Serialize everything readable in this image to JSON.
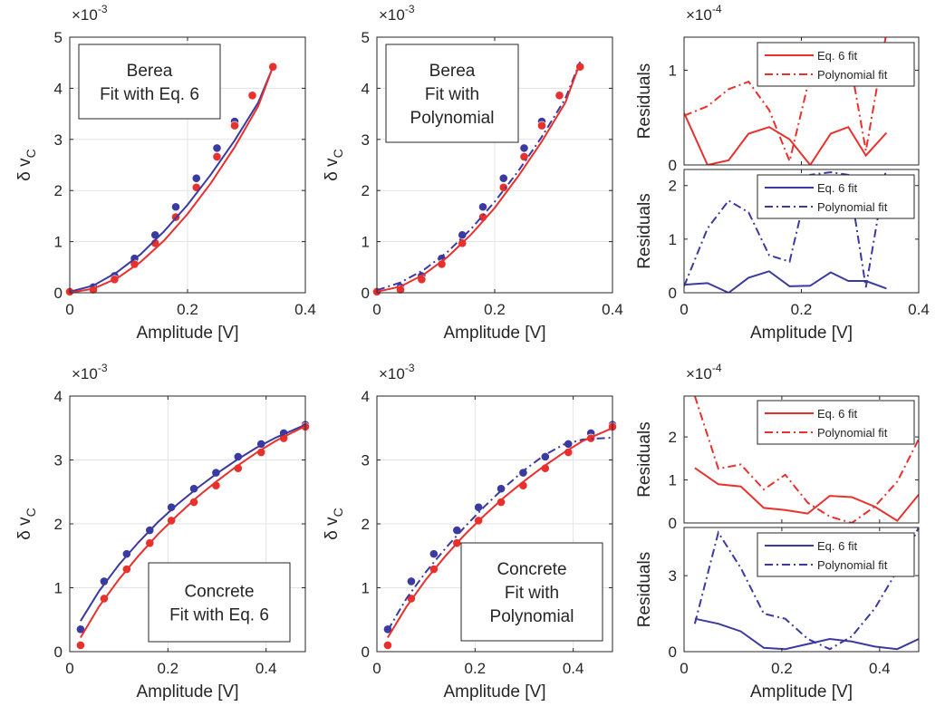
{
  "colors": {
    "red": "#e8312d",
    "blue": "#3a3aa0",
    "grid": "#e3e3e3",
    "axis": "#262626"
  },
  "chart_data": [
    {
      "id": "berea_eq6",
      "type": "scatter",
      "xlabel": "Amplitude [V]",
      "ylabel": "δ v",
      "ylabel_sub": "C",
      "exponent": "×10",
      "exponent_power": "-3",
      "xlim": [
        0,
        0.4
      ],
      "ylim": [
        0,
        5
      ],
      "xticks": [
        0,
        0.2,
        0.4
      ],
      "xtick_labels": [
        "0",
        "0.2",
        "0.4"
      ],
      "yticks": [
        0,
        1,
        2,
        3,
        4,
        5
      ],
      "ytick_labels": [
        "0",
        "1",
        "2",
        "3",
        "4",
        "5"
      ],
      "annotation": [
        "Berea",
        "Fit with Eq. 6"
      ],
      "series": [
        {
          "color": "blue",
          "marker": true,
          "x": [
            0,
            0.04,
            0.076,
            0.11,
            0.145,
            0.18,
            0.215,
            0.25,
            0.28,
            0.31,
            0.345
          ],
          "y": [
            0.03,
            0.11,
            0.33,
            0.67,
            1.13,
            1.68,
            2.24,
            2.83,
            3.35,
            3.86,
            4.42
          ]
        },
        {
          "color": "red",
          "marker": true,
          "x": [
            0,
            0.04,
            0.076,
            0.11,
            0.145,
            0.18,
            0.215,
            0.25,
            0.28,
            0.31,
            0.345
          ],
          "y": [
            0.02,
            0.06,
            0.26,
            0.56,
            0.97,
            1.48,
            2.06,
            2.66,
            3.27,
            3.86,
            4.42
          ]
        },
        {
          "color": "blue",
          "line": "solid",
          "x": [
            0,
            0.04,
            0.08,
            0.12,
            0.16,
            0.2,
            0.24,
            0.28,
            0.32,
            0.345
          ],
          "y": [
            0.02,
            0.14,
            0.4,
            0.75,
            1.2,
            1.72,
            2.32,
            2.98,
            3.72,
            4.42
          ]
        },
        {
          "color": "red",
          "line": "solid",
          "x": [
            0,
            0.04,
            0.08,
            0.12,
            0.16,
            0.2,
            0.24,
            0.28,
            0.32,
            0.345
          ],
          "y": [
            0.0,
            0.08,
            0.28,
            0.6,
            1.02,
            1.54,
            2.15,
            2.85,
            3.65,
            4.42
          ]
        }
      ]
    },
    {
      "id": "berea_poly",
      "type": "scatter",
      "xlabel": "Amplitude [V]",
      "ylabel": "δ v",
      "ylabel_sub": "C",
      "exponent": "×10",
      "exponent_power": "-3",
      "xlim": [
        0,
        0.4
      ],
      "ylim": [
        0,
        5
      ],
      "xticks": [
        0,
        0.2,
        0.4
      ],
      "xtick_labels": [
        "0",
        "0.2",
        "0.4"
      ],
      "yticks": [
        0,
        1,
        2,
        3,
        4,
        5
      ],
      "ytick_labels": [
        "0",
        "1",
        "2",
        "3",
        "4",
        "5"
      ],
      "annotation": [
        "Berea",
        "Fit with",
        "Polynomial"
      ],
      "series": [
        {
          "color": "blue",
          "marker": true,
          "x": [
            0,
            0.04,
            0.076,
            0.11,
            0.145,
            0.18,
            0.215,
            0.25,
            0.28,
            0.31,
            0.345
          ],
          "y": [
            0.03,
            0.11,
            0.33,
            0.67,
            1.13,
            1.68,
            2.24,
            2.83,
            3.35,
            3.86,
            4.42
          ]
        },
        {
          "color": "red",
          "marker": true,
          "x": [
            0,
            0.04,
            0.076,
            0.11,
            0.145,
            0.18,
            0.215,
            0.25,
            0.28,
            0.31,
            0.345
          ],
          "y": [
            0.02,
            0.06,
            0.26,
            0.56,
            0.97,
            1.48,
            2.06,
            2.66,
            3.27,
            3.86,
            4.42
          ]
        },
        {
          "color": "blue",
          "line": "dashdot",
          "x": [
            0,
            0.04,
            0.08,
            0.12,
            0.16,
            0.2,
            0.24,
            0.28,
            0.32,
            0.345
          ],
          "y": [
            0.05,
            0.2,
            0.45,
            0.8,
            1.25,
            1.78,
            2.38,
            3.05,
            3.8,
            4.52
          ]
        },
        {
          "color": "red",
          "line": "solid",
          "x": [
            0,
            0.04,
            0.08,
            0.12,
            0.16,
            0.2,
            0.24,
            0.28,
            0.32,
            0.345
          ],
          "y": [
            0.02,
            0.12,
            0.36,
            0.7,
            1.14,
            1.66,
            2.28,
            2.96,
            3.72,
            4.5
          ]
        }
      ]
    },
    {
      "id": "berea_resid",
      "type": "line",
      "exponent": "×10",
      "exponent_power": "-4",
      "xlabel": "Amplitude [V]",
      "xlim": [
        0,
        0.4
      ],
      "xticks": [
        0,
        0.2,
        0.4
      ],
      "xtick_labels": [
        "0",
        "0.2",
        "0.4"
      ],
      "panels": [
        {
          "ylabel": "Residuals",
          "ylim": [
            0,
            1.35
          ],
          "yticks": [
            0,
            1
          ],
          "ytick_labels": [
            "0",
            "1"
          ],
          "legend": [
            "Eq. 6 fit",
            "Polynomial fit"
          ],
          "legend_position": "top-right",
          "series": [
            {
              "name": "Eq. 6 fit",
              "color": "red",
              "line": "solid",
              "x": [
                0,
                0.04,
                0.076,
                0.11,
                0.145,
                0.18,
                0.215,
                0.25,
                0.28,
                0.31,
                0.345
              ],
              "y": [
                0.55,
                0.0,
                0.05,
                0.33,
                0.4,
                0.27,
                0.0,
                0.33,
                0.4,
                0.1,
                0.34
              ]
            },
            {
              "name": "Polynomial fit",
              "color": "red",
              "line": "dashdot",
              "x": [
                0,
                0.04,
                0.076,
                0.11,
                0.145,
                0.18,
                0.215,
                0.25,
                0.28,
                0.31,
                0.345
              ],
              "y": [
                0.52,
                0.62,
                0.8,
                0.88,
                0.58,
                0.04,
                0.95,
                1.28,
                1.2,
                0.15,
                1.4
              ]
            }
          ]
        },
        {
          "ylabel": "Residuals",
          "ylim": [
            0,
            2.3
          ],
          "yticks": [
            0,
            1,
            2
          ],
          "ytick_labels": [
            "0",
            "1",
            "2"
          ],
          "legend": [
            "Eq. 6 fit",
            "Polynomial fit"
          ],
          "legend_position": "top-right",
          "series": [
            {
              "name": "Eq. 6 fit",
              "color": "blue",
              "line": "solid",
              "x": [
                0,
                0.04,
                0.076,
                0.11,
                0.145,
                0.18,
                0.215,
                0.25,
                0.28,
                0.31,
                0.345
              ],
              "y": [
                0.15,
                0.18,
                0.0,
                0.28,
                0.4,
                0.12,
                0.13,
                0.38,
                0.22,
                0.22,
                0.08
              ]
            },
            {
              "name": "Polynomial fit",
              "color": "blue",
              "line": "dashdot",
              "x": [
                0,
                0.04,
                0.076,
                0.11,
                0.145,
                0.18,
                0.215,
                0.25,
                0.28,
                0.31,
                0.345
              ],
              "y": [
                0.12,
                1.2,
                1.72,
                1.5,
                0.7,
                0.58,
                2.2,
                2.25,
                2.2,
                0.1,
                2.35
              ]
            }
          ]
        }
      ]
    },
    {
      "id": "concrete_eq6",
      "type": "scatter",
      "xlabel": "Amplitude [V]",
      "ylabel": "δ v",
      "ylabel_sub": "C",
      "exponent": "×10",
      "exponent_power": "-3",
      "xlim": [
        0,
        0.48
      ],
      "ylim": [
        0,
        4
      ],
      "xticks": [
        0,
        0.2,
        0.4
      ],
      "xtick_labels": [
        "0",
        "0.2",
        "0.4"
      ],
      "yticks": [
        0,
        1,
        2,
        3,
        4
      ],
      "ytick_labels": [
        "0",
        "1",
        "2",
        "3",
        "4"
      ],
      "annotation": [
        "Concrete",
        "Fit with Eq. 6"
      ],
      "series": [
        {
          "color": "blue",
          "marker": true,
          "x": [
            0.022,
            0.07,
            0.116,
            0.163,
            0.207,
            0.253,
            0.298,
            0.343,
            0.39,
            0.436,
            0.48
          ],
          "y": [
            0.35,
            1.1,
            1.53,
            1.9,
            2.26,
            2.55,
            2.8,
            3.05,
            3.25,
            3.42,
            3.55
          ]
        },
        {
          "color": "red",
          "marker": true,
          "x": [
            0.022,
            0.07,
            0.116,
            0.163,
            0.207,
            0.253,
            0.298,
            0.343,
            0.39,
            0.436,
            0.48
          ],
          "y": [
            0.1,
            0.83,
            1.29,
            1.7,
            2.05,
            2.34,
            2.6,
            2.87,
            3.12,
            3.34,
            3.52
          ]
        },
        {
          "color": "blue",
          "line": "solid",
          "x": [
            0.022,
            0.06,
            0.1,
            0.14,
            0.18,
            0.22,
            0.26,
            0.3,
            0.34,
            0.38,
            0.42,
            0.48
          ],
          "y": [
            0.48,
            0.95,
            1.36,
            1.71,
            2.03,
            2.31,
            2.56,
            2.79,
            3.0,
            3.19,
            3.35,
            3.55
          ]
        },
        {
          "color": "red",
          "line": "solid",
          "x": [
            0.022,
            0.06,
            0.1,
            0.14,
            0.18,
            0.22,
            0.26,
            0.3,
            0.34,
            0.38,
            0.42,
            0.48
          ],
          "y": [
            0.22,
            0.71,
            1.13,
            1.5,
            1.84,
            2.14,
            2.42,
            2.67,
            2.9,
            3.11,
            3.3,
            3.53
          ]
        }
      ]
    },
    {
      "id": "concrete_poly",
      "type": "scatter",
      "xlabel": "Amplitude [V]",
      "ylabel": "δ v",
      "ylabel_sub": "C",
      "exponent": "×10",
      "exponent_power": "-3",
      "xlim": [
        0,
        0.48
      ],
      "ylim": [
        0,
        4
      ],
      "xticks": [
        0,
        0.2,
        0.4
      ],
      "xtick_labels": [
        "0",
        "0.2",
        "0.4"
      ],
      "yticks": [
        0,
        1,
        2,
        3,
        4
      ],
      "ytick_labels": [
        "0",
        "1",
        "2",
        "3",
        "4"
      ],
      "annotation": [
        "Concrete",
        "Fit with",
        "Polynomial"
      ],
      "series": [
        {
          "color": "blue",
          "marker": true,
          "x": [
            0.022,
            0.07,
            0.116,
            0.163,
            0.207,
            0.253,
            0.298,
            0.343,
            0.39,
            0.436,
            0.48
          ],
          "y": [
            0.35,
            1.1,
            1.53,
            1.9,
            2.26,
            2.55,
            2.8,
            3.05,
            3.25,
            3.42,
            3.55
          ]
        },
        {
          "color": "red",
          "marker": true,
          "x": [
            0.022,
            0.07,
            0.116,
            0.163,
            0.207,
            0.253,
            0.298,
            0.343,
            0.39,
            0.436,
            0.48
          ],
          "y": [
            0.1,
            0.83,
            1.29,
            1.7,
            2.05,
            2.34,
            2.6,
            2.87,
            3.12,
            3.34,
            3.52
          ]
        },
        {
          "color": "blue",
          "line": "dashdot",
          "x": [
            0.022,
            0.06,
            0.1,
            0.14,
            0.18,
            0.22,
            0.26,
            0.3,
            0.34,
            0.38,
            0.42,
            0.48
          ],
          "y": [
            0.33,
            0.83,
            1.25,
            1.62,
            1.96,
            2.28,
            2.57,
            2.84,
            3.07,
            3.24,
            3.32,
            3.35
          ]
        },
        {
          "color": "red",
          "line": "solid",
          "x": [
            0.022,
            0.06,
            0.1,
            0.14,
            0.18,
            0.22,
            0.26,
            0.3,
            0.34,
            0.38,
            0.42,
            0.48
          ],
          "y": [
            0.22,
            0.7,
            1.13,
            1.5,
            1.84,
            2.14,
            2.42,
            2.67,
            2.9,
            3.11,
            3.3,
            3.5
          ]
        }
      ]
    },
    {
      "id": "concrete_resid",
      "type": "line",
      "exponent": "×10",
      "exponent_power": "-4",
      "xlabel": "Amplitude [V]",
      "xlim": [
        0,
        0.48
      ],
      "xticks": [
        0,
        0.2,
        0.4
      ],
      "xtick_labels": [
        "0",
        "0.2",
        "0.4"
      ],
      "panels": [
        {
          "ylabel": "Residuals",
          "ylim": [
            0,
            2.95
          ],
          "yticks": [
            0,
            1,
            2
          ],
          "ytick_labels": [
            "0",
            "1",
            "2"
          ],
          "legend": [
            "Eq. 6 fit",
            "Polynomial fit"
          ],
          "legend_position": "top-right",
          "series": [
            {
              "name": "Eq. 6 fit",
              "color": "red",
              "line": "solid",
              "x": [
                0.022,
                0.07,
                0.116,
                0.163,
                0.207,
                0.253,
                0.298,
                0.343,
                0.39,
                0.436,
                0.48
              ],
              "y": [
                1.28,
                0.9,
                0.85,
                0.35,
                0.3,
                0.22,
                0.63,
                0.6,
                0.38,
                0.05,
                0.66
              ]
            },
            {
              "name": "Polynomial fit",
              "color": "red",
              "line": "dashdot",
              "x": [
                0.022,
                0.07,
                0.116,
                0.163,
                0.207,
                0.253,
                0.298,
                0.343,
                0.39,
                0.436,
                0.48
              ],
              "y": [
                2.95,
                1.26,
                1.36,
                0.78,
                1.12,
                0.47,
                0.15,
                0.0,
                0.38,
                0.96,
                1.95
              ]
            }
          ]
        },
        {
          "ylabel": "Residuals",
          "ylim": [
            0,
            4.9
          ],
          "yticks": [
            0,
            3
          ],
          "ytick_labels": [
            "0",
            "3"
          ],
          "legend": [
            "Eq. 6 fit",
            "Polynomial fit"
          ],
          "legend_position": "top-right",
          "series": [
            {
              "name": "Eq. 6 fit",
              "color": "blue",
              "line": "solid",
              "x": [
                0.022,
                0.07,
                0.116,
                0.163,
                0.207,
                0.253,
                0.298,
                0.343,
                0.39,
                0.436,
                0.48
              ],
              "y": [
                1.3,
                1.1,
                0.8,
                0.15,
                0.1,
                0.3,
                0.5,
                0.4,
                0.2,
                0.1,
                0.5
              ]
            },
            {
              "name": "Polynomial fit",
              "color": "blue",
              "line": "dashdot",
              "x": [
                0.022,
                0.07,
                0.116,
                0.163,
                0.207,
                0.253,
                0.298,
                0.343,
                0.39,
                0.436,
                0.48
              ],
              "y": [
                1.1,
                4.7,
                3.3,
                1.5,
                1.3,
                0.5,
                0.1,
                0.6,
                1.7,
                3.2,
                4.9
              ]
            }
          ]
        }
      ]
    }
  ]
}
